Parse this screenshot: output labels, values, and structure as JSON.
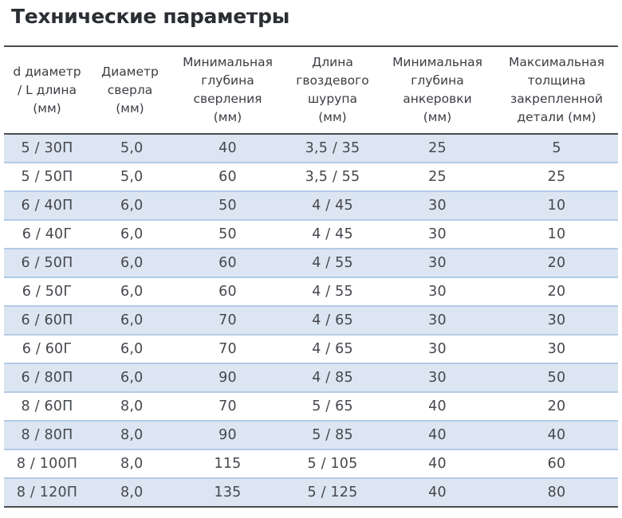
{
  "page": {
    "title": "Технические параметры"
  },
  "table": {
    "headers": [
      "d диаметр\n/ L длина\n(мм)",
      "Диаметр\nсверла\n(мм)",
      "Минимальная\nглубина\nсверления\n(мм)",
      "Длина\nгвоздевого\nшурупа\n(мм)",
      "Минимальная\nглубина\nанкеровки\n(мм)",
      "Максимальная\nтолщина\nзакрепленной\nдетали (мм)"
    ],
    "rows": [
      [
        "5 / 30П",
        "5,0",
        "40",
        "3,5 / 35",
        "25",
        "5"
      ],
      [
        "5 / 50П",
        "5,0",
        "60",
        "3,5 / 55",
        "25",
        "25"
      ],
      [
        "6 / 40П",
        "6,0",
        "50",
        "4 / 45",
        "30",
        "10"
      ],
      [
        "6 / 40Г",
        "6,0",
        "50",
        "4 / 45",
        "30",
        "10"
      ],
      [
        "6 / 50П",
        "6,0",
        "60",
        "4 / 55",
        "30",
        "20"
      ],
      [
        "6 / 50Г",
        "6,0",
        "60",
        "4 / 55",
        "30",
        "20"
      ],
      [
        "6 / 60П",
        "6,0",
        "70",
        "4 / 65",
        "30",
        "30"
      ],
      [
        "6 / 60Г",
        "6,0",
        "70",
        "4 / 65",
        "30",
        "30"
      ],
      [
        "6 / 80П",
        "6,0",
        "90",
        "4 / 85",
        "30",
        "50"
      ],
      [
        "8 / 60П",
        "8,0",
        "70",
        "5 / 65",
        "40",
        "20"
      ],
      [
        "8 / 80П",
        "8,0",
        "90",
        "5 / 85",
        "40",
        "40"
      ],
      [
        "8 / 100П",
        "8,0",
        "115",
        "5 / 105",
        "40",
        "60"
      ],
      [
        "8 / 120П",
        "8,0",
        "135",
        "5 / 125",
        "40",
        "80"
      ]
    ]
  },
  "colors": {
    "row_shade": "#dce6f2",
    "row_divider": "#b3cbe6",
    "rule": "#4a4c50",
    "text": "#3a3d42"
  }
}
